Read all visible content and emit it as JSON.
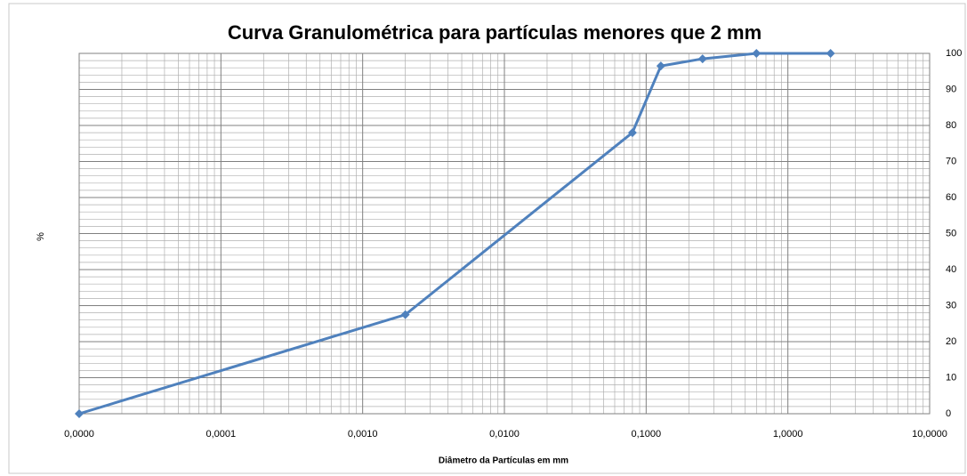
{
  "chart_data": {
    "type": "line",
    "title": "Curva Granulométrica para partículas menores que 2 mm",
    "x_label": "Diâmetro da Partículas em mm",
    "y_label": "%",
    "x": [
      1e-05,
      0.002,
      0.08,
      0.127,
      0.25,
      0.6,
      2
    ],
    "series": [
      {
        "color": "#4f81bd",
        "values": [
          0,
          27.5,
          78,
          96.5,
          98.5,
          100,
          100
        ]
      }
    ],
    "xscale": "log",
    "xlim": [
      1e-05,
      10
    ],
    "xticks": [
      {
        "value": 1e-05,
        "label": "0,0000"
      },
      {
        "value": 0.0001,
        "label": "0,0001"
      },
      {
        "value": 0.001,
        "label": "0,0010"
      },
      {
        "value": 0.01,
        "label": "0,0100"
      },
      {
        "value": 0.1,
        "label": "0,1000"
      },
      {
        "value": 1,
        "label": "1,0000"
      },
      {
        "value": 10,
        "label": "10,0000"
      }
    ],
    "ylim": [
      0,
      100
    ],
    "yticks": [
      0,
      10,
      20,
      30,
      40,
      50,
      60,
      70,
      80,
      90,
      100
    ],
    "yaxis_side": "right",
    "grid": true
  }
}
